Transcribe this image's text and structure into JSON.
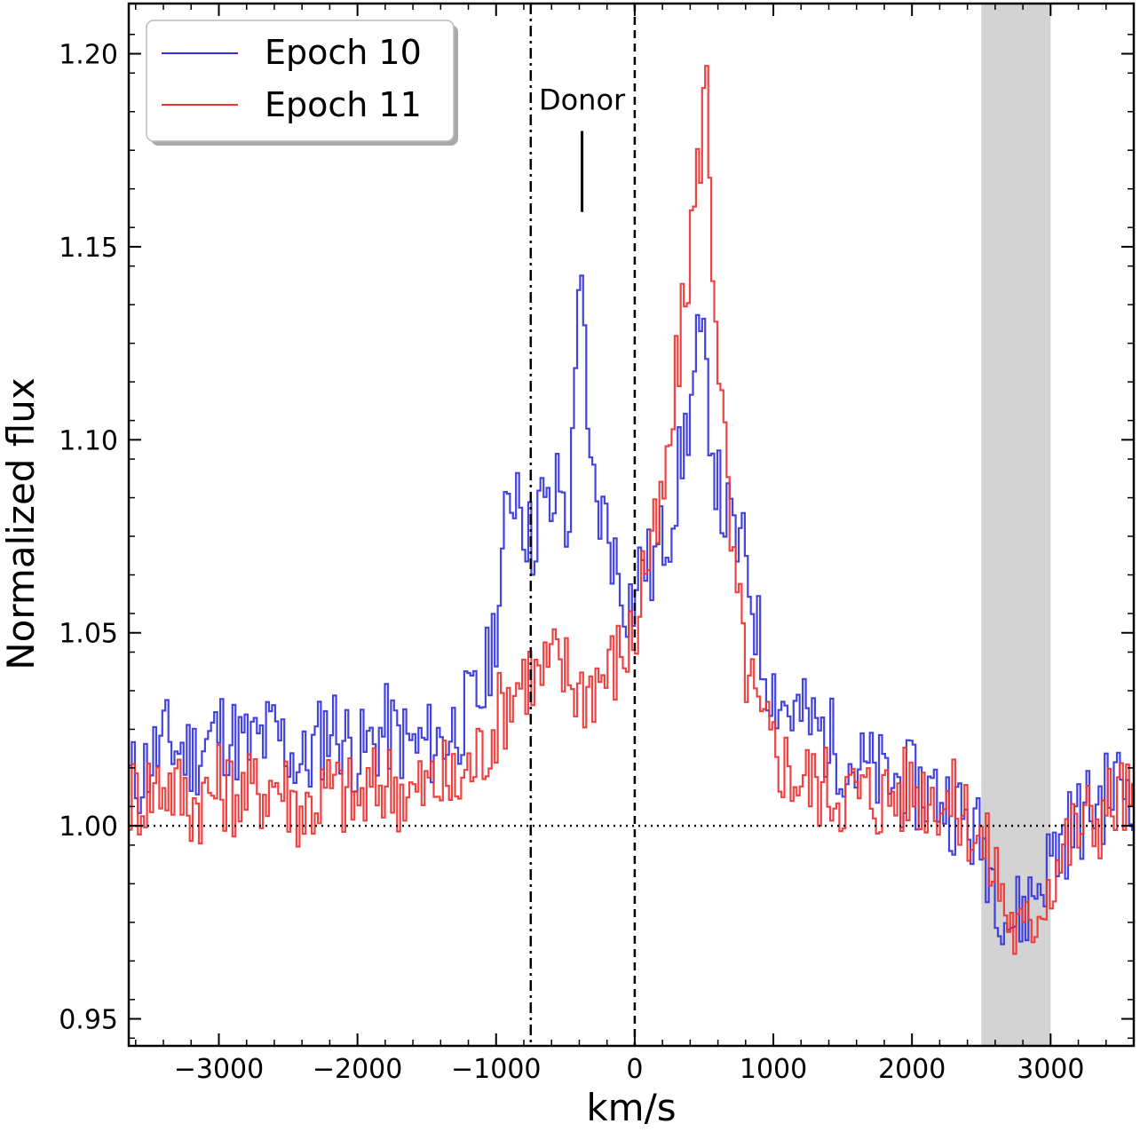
{
  "chart_data": {
    "type": "line",
    "style": "step",
    "xlabel": "km/s",
    "ylabel": "Normalized flux",
    "xlim": [
      -3650,
      3600
    ],
    "ylim": [
      0.943,
      1.213
    ],
    "x_ticks": [
      -3000,
      -2000,
      -1000,
      0,
      1000,
      2000,
      3000
    ],
    "x_tick_labels": [
      "−3000",
      "−2000",
      "−1000",
      "0",
      "1000",
      "2000",
      "3000"
    ],
    "y_ticks": [
      0.95,
      1.0,
      1.05,
      1.1,
      1.15,
      1.2
    ],
    "y_tick_labels": [
      "0.95",
      "1.00",
      "1.05",
      "1.10",
      "1.15",
      "1.20"
    ],
    "legend_position": "top-left",
    "grid": false,
    "series": [
      {
        "name": "Epoch 10",
        "color": "#3333dd",
        "x": [
          -3600,
          -3400,
          -3200,
          -3000,
          -2800,
          -2600,
          -2400,
          -2200,
          -2000,
          -1800,
          -1600,
          -1400,
          -1300,
          -1200,
          -1100,
          -1000,
          -950,
          -900,
          -850,
          -800,
          -750,
          -700,
          -650,
          -600,
          -550,
          -500,
          -450,
          -420,
          -400,
          -380,
          -350,
          -300,
          -250,
          -200,
          -150,
          -100,
          -50,
          0,
          50,
          100,
          150,
          200,
          250,
          300,
          350,
          400,
          450,
          500,
          550,
          600,
          700,
          800,
          900,
          1000,
          1100,
          1200,
          1300,
          1400,
          1600,
          1800,
          2000,
          2200,
          2400,
          2500,
          2600,
          2700,
          2800,
          2900,
          3000,
          3100,
          3200,
          3300,
          3400,
          3500,
          3600
        ],
        "y": [
          1.012,
          1.022,
          1.018,
          1.025,
          1.02,
          1.024,
          1.015,
          1.027,
          1.018,
          1.025,
          1.02,
          1.022,
          1.026,
          1.03,
          1.035,
          1.055,
          1.075,
          1.085,
          1.092,
          1.078,
          1.072,
          1.085,
          1.08,
          1.082,
          1.09,
          1.075,
          1.1,
          1.145,
          1.152,
          1.13,
          1.095,
          1.085,
          1.08,
          1.078,
          1.068,
          1.062,
          1.058,
          1.06,
          1.072,
          1.065,
          1.07,
          1.075,
          1.08,
          1.09,
          1.1,
          1.11,
          1.125,
          1.118,
          1.1,
          1.085,
          1.075,
          1.068,
          1.045,
          1.035,
          1.03,
          1.028,
          1.025,
          1.022,
          1.015,
          1.012,
          1.01,
          1.008,
          1.0,
          0.995,
          0.985,
          0.975,
          0.978,
          0.985,
          0.992,
          0.998,
          1.002,
          1.005,
          1.008,
          1.012,
          1.01
        ]
      },
      {
        "name": "Epoch 11",
        "color": "#ee3333",
        "x": [
          -3600,
          -3400,
          -3200,
          -3000,
          -2800,
          -2600,
          -2400,
          -2200,
          -2000,
          -1800,
          -1600,
          -1400,
          -1300,
          -1200,
          -1100,
          -1000,
          -900,
          -800,
          -700,
          -600,
          -500,
          -400,
          -300,
          -200,
          -100,
          0,
          50,
          100,
          150,
          200,
          250,
          300,
          350,
          400,
          450,
          480,
          500,
          520,
          550,
          600,
          650,
          700,
          800,
          900,
          1000,
          1100,
          1200,
          1400,
          1600,
          1800,
          2000,
          2200,
          2400,
          2500,
          2600,
          2700,
          2800,
          2900,
          3000,
          3100,
          3200,
          3300,
          3400,
          3500,
          3600
        ],
        "y": [
          1.008,
          1.012,
          1.006,
          1.01,
          1.008,
          1.012,
          1.004,
          1.01,
          1.006,
          1.012,
          1.008,
          1.012,
          1.01,
          1.015,
          1.02,
          1.028,
          1.035,
          1.04,
          1.038,
          1.042,
          1.04,
          1.035,
          1.038,
          1.04,
          1.045,
          1.05,
          1.068,
          1.07,
          1.075,
          1.085,
          1.1,
          1.12,
          1.135,
          1.155,
          1.17,
          1.185,
          1.198,
          1.18,
          1.15,
          1.12,
          1.09,
          1.065,
          1.04,
          1.025,
          1.02,
          1.015,
          1.012,
          1.01,
          1.008,
          1.008,
          1.01,
          1.008,
          1.002,
          0.995,
          0.988,
          0.975,
          0.97,
          0.98,
          0.988,
          0.995,
          1.0,
          1.002,
          1.005,
          1.008,
          1.004
        ]
      }
    ],
    "annotations": [
      {
        "type": "vline",
        "x": -750,
        "style": "dashdot",
        "color": "#000000"
      },
      {
        "type": "vline",
        "x": 0,
        "style": "dashed",
        "color": "#000000"
      },
      {
        "type": "hline",
        "y": 1.0,
        "style": "dotted",
        "color": "#000000"
      },
      {
        "type": "span",
        "x0": 2500,
        "x1": 3000,
        "color": "#d3d3d3"
      },
      {
        "type": "marker",
        "x": -380,
        "y0": 1.159,
        "y1": 1.18,
        "label": "Donor"
      }
    ]
  }
}
